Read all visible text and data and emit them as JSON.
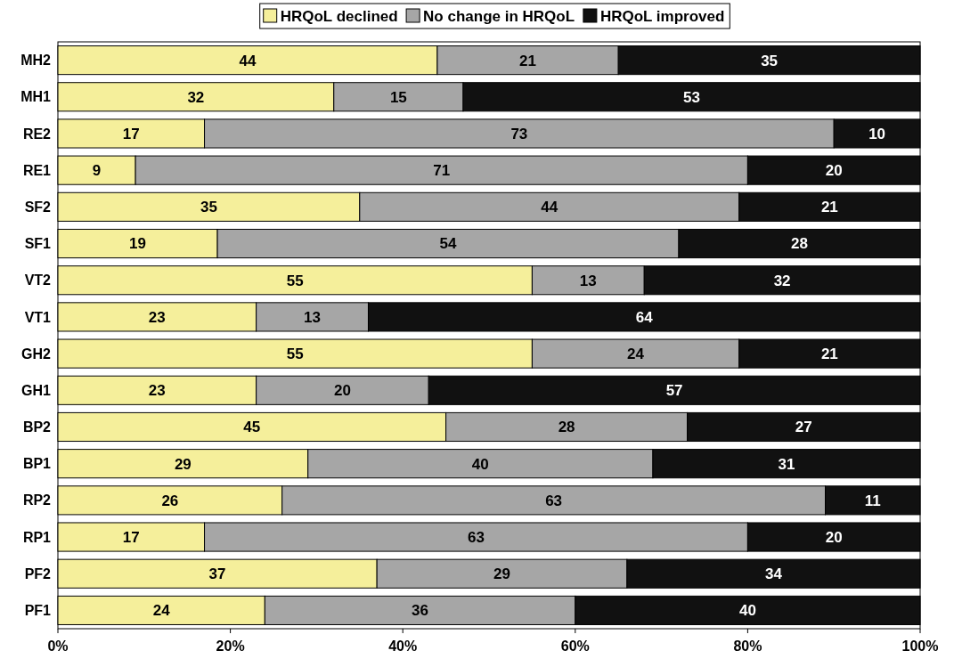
{
  "chart_data": {
    "type": "bar",
    "orientation": "horizontal",
    "stacked": true,
    "legend": "top",
    "grid": false,
    "categories": [
      "MH2",
      "MH1",
      "RE2",
      "RE1",
      "SF2",
      "SF1",
      "VT2",
      "VT1",
      "GH2",
      "GH1",
      "BP2",
      "BP1",
      "RP2",
      "RP1",
      "PF2",
      "PF1"
    ],
    "xlim": [
      0,
      100
    ],
    "xticks": [
      {
        "value": 0,
        "label": "0%"
      },
      {
        "value": 20,
        "label": "20%"
      },
      {
        "value": 40,
        "label": "40%"
      },
      {
        "value": 60,
        "label": "60%"
      },
      {
        "value": 80,
        "label": "80%"
      },
      {
        "value": 100,
        "label": "100%"
      }
    ],
    "series": [
      {
        "name": "HRQoL declined",
        "color": "#f5ef9b",
        "values": [
          44,
          32,
          17,
          9,
          35,
          18.5,
          55,
          23,
          55,
          23,
          45,
          29,
          26,
          17,
          37,
          24
        ],
        "value_labels": [
          "44",
          "32",
          "17",
          "9",
          "35",
          "19",
          "55",
          "23",
          "55",
          "23",
          "45",
          "29",
          "26",
          "17",
          "37",
          "24"
        ]
      },
      {
        "name": "No change in HRQoL",
        "color": "#a6a6a6",
        "values": [
          21,
          15,
          73,
          71,
          44,
          53.5,
          13,
          13,
          24,
          20,
          28,
          40,
          63,
          63,
          29,
          36
        ],
        "value_labels": [
          "21",
          "15",
          "73",
          "71",
          "44",
          "54",
          "13",
          "13",
          "24",
          "20",
          "28",
          "40",
          "63",
          "63",
          "29",
          "36"
        ]
      },
      {
        "name": "HRQoL improved",
        "color": "#111111",
        "values": [
          35,
          53,
          10,
          20,
          21,
          28,
          32,
          64,
          21,
          57,
          27,
          31,
          11,
          20,
          34,
          40
        ],
        "value_labels": [
          "35",
          "53",
          "10",
          "20",
          "21",
          "28",
          "32",
          "64",
          "21",
          "57",
          "27",
          "31",
          "11",
          "20",
          "34",
          "40"
        ]
      }
    ]
  }
}
